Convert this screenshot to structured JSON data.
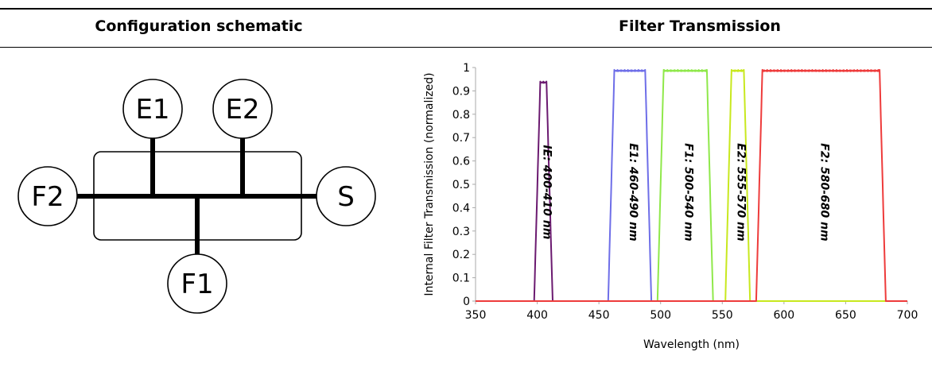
{
  "headers": {
    "left": "Configuration schematic",
    "right": "Filter Transmission"
  },
  "schematic": {
    "nodes": {
      "e1": "E1",
      "e2": "E2",
      "f2": "F2",
      "s": "S",
      "f1": "F1"
    }
  },
  "chart_data": {
    "type": "line",
    "title": "",
    "xlabel": "Wavelength (nm)",
    "ylabel": "Internal Filter Transmission (normalized)",
    "xlim": [
      350,
      700
    ],
    "ylim": [
      0,
      1
    ],
    "x_ticks": [
      "350",
      "400",
      "450",
      "500",
      "550",
      "600",
      "650",
      "700"
    ],
    "y_ticks": [
      "0",
      "0.1",
      "0.2",
      "0.3",
      "0.4",
      "0.5",
      "0.6",
      "0.7",
      "0.8",
      "0.9",
      "1"
    ],
    "grid": false,
    "series": [
      {
        "label": "IE: 400-410 nm",
        "lo": 400,
        "hi": 410,
        "peak": 0.94,
        "color": "#6B1A70"
      },
      {
        "label": "E1: 460-490 nm",
        "lo": 460,
        "hi": 490,
        "peak": 0.99,
        "color": "#6E6EE8"
      },
      {
        "label": "F1: 500-540 nm",
        "lo": 500,
        "hi": 540,
        "peak": 0.99,
        "color": "#8FE84A"
      },
      {
        "label": "E2: 555-570 nm",
        "lo": 555,
        "hi": 570,
        "peak": 0.99,
        "color": "#C8E81E"
      },
      {
        "label": "F2: 580-680 nm",
        "lo": 580,
        "hi": 680,
        "peak": 0.99,
        "color": "#EE3B3B"
      }
    ]
  }
}
